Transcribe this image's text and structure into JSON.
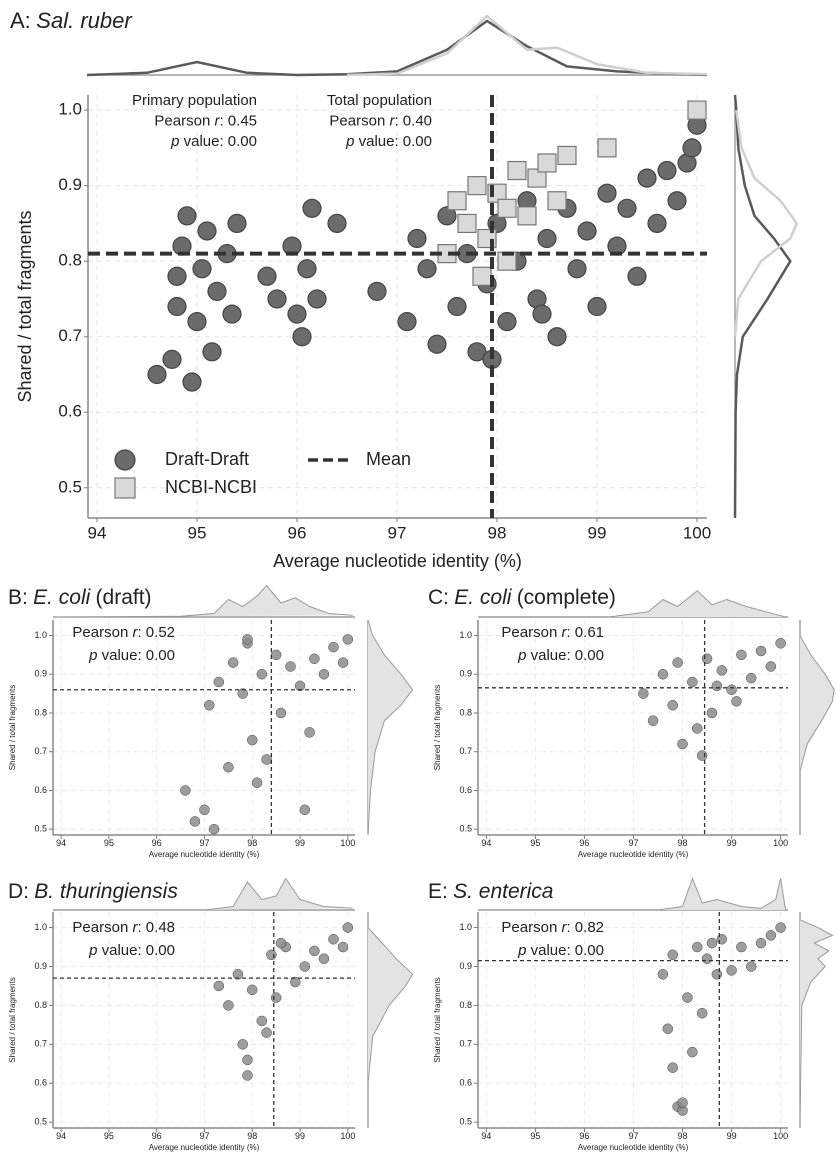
{
  "chart_data": [
    {
      "type": "scatter",
      "panel": "A:",
      "title": "Sal. ruber",
      "xlabel": "Average nucleotide identity (%)",
      "ylabel": "Shared / total fragments",
      "xlim": [
        93.91,
        100.1
      ],
      "ylim": [
        0.46,
        1.02
      ],
      "xticks": [
        94,
        95,
        96,
        97,
        98,
        99,
        100
      ],
      "yticks": [
        0.5,
        0.6,
        0.7,
        0.8,
        0.9,
        {
          "value": 1.0,
          "label": "1.0"
        }
      ],
      "grid": true,
      "mean_x": 97.95,
      "mean_y": 0.81,
      "mean_label": "Mean",
      "annotations": [
        {
          "lines": [
            [
              {
                "text": "Primary population"
              }
            ],
            [
              {
                "text": "Pearson "
              },
              {
                "text": "r",
                "italic": true
              },
              {
                "text": ": 0.45"
              }
            ],
            [
              {
                "text": "p",
                "italic": true
              },
              {
                "text": " value: 0.00"
              }
            ]
          ]
        },
        {
          "lines": [
            [
              {
                "text": "Total population"
              }
            ],
            [
              {
                "text": "Pearson "
              },
              {
                "text": "r",
                "italic": true
              },
              {
                "text": ": 0.40"
              }
            ],
            [
              {
                "text": "p",
                "italic": true
              },
              {
                "text": " value: 0.00"
              }
            ]
          ]
        }
      ],
      "series": [
        {
          "name": "Draft-Draft",
          "color": "#6b6b6b",
          "marker": "circle",
          "x": [
            94.6,
            94.75,
            94.8,
            94.85,
            94.9,
            95.0,
            95.05,
            95.1,
            95.15,
            95.2,
            95.3,
            95.35,
            94.95,
            95.4,
            94.8,
            95.7,
            95.8,
            95.95,
            96.0,
            96.05,
            96.15,
            96.2,
            96.4,
            96.1,
            96.8,
            97.1,
            97.2,
            97.3,
            97.4,
            97.5,
            97.6,
            97.7,
            97.8,
            97.9,
            98.0,
            98.1,
            98.2,
            98.3,
            98.4,
            98.5,
            98.6,
            98.7,
            98.8,
            98.9,
            99.0,
            99.1,
            99.2,
            99.3,
            99.4,
            99.5,
            99.6,
            99.7,
            99.8,
            99.9,
            100.0,
            99.95,
            98.45,
            97.95
          ],
          "values": [
            0.65,
            0.67,
            0.74,
            0.82,
            0.86,
            0.72,
            0.79,
            0.84,
            0.68,
            0.76,
            0.81,
            0.73,
            0.64,
            0.85,
            0.78,
            0.78,
            0.75,
            0.82,
            0.73,
            0.7,
            0.87,
            0.75,
            0.85,
            0.79,
            0.76,
            0.72,
            0.83,
            0.79,
            0.69,
            0.86,
            0.74,
            0.81,
            0.68,
            0.77,
            0.85,
            0.72,
            0.8,
            0.88,
            0.75,
            0.83,
            0.7,
            0.87,
            0.79,
            0.84,
            0.74,
            0.89,
            0.82,
            0.87,
            0.78,
            0.91,
            0.85,
            0.92,
            0.88,
            0.93,
            0.98,
            0.95,
            0.73,
            0.67
          ]
        },
        {
          "name": "NCBI-NCBI",
          "color": "#d9d9d9",
          "marker": "square",
          "x": [
            97.5,
            97.6,
            97.7,
            97.8,
            97.9,
            98.0,
            98.1,
            98.2,
            98.3,
            98.4,
            98.5,
            98.6,
            98.7,
            98.1,
            97.85,
            99.1,
            100.0
          ],
          "values": [
            0.81,
            0.88,
            0.85,
            0.9,
            0.83,
            0.89,
            0.87,
            0.92,
            0.86,
            0.91,
            0.93,
            0.88,
            0.94,
            0.8,
            0.78,
            0.95,
            1.0
          ]
        }
      ],
      "top_density": [
        {
          "color": "#5a5a5a",
          "x": [
            93.9,
            94.5,
            95.0,
            95.5,
            96.0,
            96.5,
            97.0,
            97.5,
            97.9,
            98.3,
            98.7,
            99.2,
            99.7,
            100.1
          ],
          "values": [
            0,
            0.03,
            0.18,
            0.03,
            0,
            0.01,
            0.05,
            0.35,
            0.75,
            0.4,
            0.12,
            0.05,
            0.02,
            0
          ]
        },
        {
          "color": "#cfcfcf",
          "x": [
            96.5,
            97.0,
            97.5,
            97.9,
            98.3,
            98.6,
            99.0,
            99.5,
            100.1
          ],
          "values": [
            0,
            0.02,
            0.3,
            0.82,
            0.35,
            0.38,
            0.15,
            0.03,
            0.01
          ]
        }
      ],
      "right_density": [
        {
          "color": "#5a5a5a",
          "y": [
            0.46,
            0.6,
            0.65,
            0.7,
            0.75,
            0.8,
            0.83,
            0.86,
            0.9,
            0.95,
            1.0,
            1.02
          ],
          "values": [
            0,
            0.01,
            0.03,
            0.12,
            0.5,
            0.85,
            0.6,
            0.3,
            0.15,
            0.05,
            0.02,
            0
          ]
        },
        {
          "color": "#cfcfcf",
          "y": [
            0.7,
            0.75,
            0.8,
            0.83,
            0.85,
            0.88,
            0.91,
            0.95,
            1.0
          ],
          "values": [
            0,
            0.05,
            0.4,
            0.85,
            0.95,
            0.7,
            0.3,
            0.1,
            0.02
          ]
        }
      ]
    },
    {
      "type": "scatter",
      "panel": "B:",
      "title": "E. coli",
      "title_suffix": "(draft)",
      "xlabel": "Average nucleotide identity (%)",
      "ylabel": "Shared / total fragments",
      "xlim": [
        93.83,
        100.15
      ],
      "ylim": [
        0.485,
        1.04
      ],
      "xticks": [
        94,
        95,
        96,
        97,
        98,
        99,
        100
      ],
      "yticks": [
        0.5,
        0.6,
        0.7,
        0.8,
        0.9,
        {
          "value": 1.0,
          "label": "1.0"
        }
      ],
      "grid": true,
      "mean_x": 98.4,
      "mean_y": 0.86,
      "annotations": [
        {
          "lines": [
            [
              {
                "text": "Pearson "
              },
              {
                "text": "r",
                "italic": true
              },
              {
                "text": ": 0.52"
              }
            ],
            [
              {
                "text": "p",
                "italic": true
              },
              {
                "text": " value: 0.00"
              }
            ]
          ]
        }
      ],
      "series": [
        {
          "color": "#8c8c8c",
          "marker": "circle",
          "x": [
            96.6,
            96.8,
            97.0,
            97.1,
            97.3,
            97.5,
            97.6,
            97.8,
            97.9,
            98.0,
            98.2,
            98.3,
            98.5,
            98.6,
            98.8,
            99.0,
            99.1,
            99.3,
            99.5,
            99.7,
            99.9,
            100.0,
            97.9,
            98.1,
            99.2,
            97.2
          ],
          "values": [
            0.6,
            0.52,
            0.55,
            0.82,
            0.88,
            0.66,
            0.93,
            0.85,
            0.98,
            0.73,
            0.9,
            0.68,
            0.95,
            0.8,
            0.92,
            0.87,
            0.55,
            0.94,
            0.9,
            0.97,
            0.93,
            0.99,
            0.99,
            0.62,
            0.75,
            0.5
          ]
        }
      ],
      "top_density": [
        {
          "color": "#999999",
          "fill": "#e3e3e3",
          "x": [
            93.9,
            96.5,
            97.2,
            97.5,
            97.8,
            98.1,
            98.3,
            98.6,
            98.9,
            99.2,
            99.6,
            100.1
          ],
          "values": [
            0,
            0.02,
            0.1,
            0.5,
            0.3,
            0.6,
            0.9,
            0.4,
            0.55,
            0.3,
            0.1,
            0.05
          ]
        }
      ],
      "right_density": [
        {
          "color": "#999999",
          "fill": "#e3e3e3",
          "y": [
            0.485,
            0.6,
            0.7,
            0.78,
            0.82,
            0.86,
            0.9,
            0.95,
            1.0,
            1.04
          ],
          "values": [
            0,
            0.05,
            0.15,
            0.35,
            0.7,
            0.95,
            0.7,
            0.35,
            0.1,
            0
          ]
        }
      ]
    },
    {
      "type": "scatter",
      "panel": "C:",
      "title": "E. coli",
      "title_suffix": "(complete)",
      "xlabel": "Average nucleotide identity (%)",
      "ylabel": "Shared / total fragments",
      "xlim": [
        93.83,
        100.15
      ],
      "ylim": [
        0.485,
        1.04
      ],
      "xticks": [
        94,
        95,
        96,
        97,
        98,
        99,
        100
      ],
      "yticks": [
        0.5,
        0.6,
        0.7,
        0.8,
        0.9,
        {
          "value": 1.0,
          "label": "1.0"
        }
      ],
      "grid": true,
      "mean_x": 98.45,
      "mean_y": 0.865,
      "annotations": [
        {
          "lines": [
            [
              {
                "text": "Pearson "
              },
              {
                "text": "r",
                "italic": true
              },
              {
                "text": ": 0.61"
              }
            ],
            [
              {
                "text": "p",
                "italic": true
              },
              {
                "text": " value: 0.00"
              }
            ]
          ]
        }
      ],
      "series": [
        {
          "color": "#8c8c8c",
          "marker": "circle",
          "x": [
            97.2,
            97.4,
            97.6,
            97.8,
            98.0,
            98.2,
            98.4,
            98.5,
            98.6,
            98.8,
            99.0,
            99.2,
            99.4,
            99.6,
            99.8,
            100.0,
            98.3,
            97.9,
            99.1,
            98.7
          ],
          "values": [
            0.85,
            0.78,
            0.9,
            0.82,
            0.72,
            0.88,
            0.69,
            0.94,
            0.8,
            0.91,
            0.86,
            0.95,
            0.89,
            0.96,
            0.92,
            0.98,
            0.76,
            0.93,
            0.83,
            0.87
          ]
        }
      ],
      "top_density": [
        {
          "color": "#999999",
          "fill": "#e3e3e3",
          "x": [
            96.5,
            97.3,
            97.6,
            97.9,
            98.3,
            98.6,
            98.9,
            99.3,
            99.7,
            100.1
          ],
          "values": [
            0,
            0.15,
            0.5,
            0.3,
            0.75,
            0.35,
            0.5,
            0.3,
            0.15,
            0
          ]
        }
      ],
      "right_density": [
        {
          "color": "#999999",
          "fill": "#e3e3e3",
          "y": [
            0.65,
            0.72,
            0.78,
            0.83,
            0.86,
            0.9,
            0.95,
            1.0
          ],
          "values": [
            0,
            0.2,
            0.6,
            0.9,
            0.95,
            0.7,
            0.3,
            0
          ]
        }
      ]
    },
    {
      "type": "scatter",
      "panel": "D:",
      "title": "B. thuringiensis",
      "xlabel": "Average nucleotide identity (%)",
      "ylabel": "Shared / total fragments",
      "xlim": [
        93.83,
        100.15
      ],
      "ylim": [
        0.485,
        1.04
      ],
      "xticks": [
        94,
        95,
        96,
        97,
        98,
        99,
        100
      ],
      "yticks": [
        0.5,
        0.6,
        0.7,
        0.8,
        0.9,
        {
          "value": 1.0,
          "label": "1.0"
        }
      ],
      "grid": true,
      "mean_x": 98.45,
      "mean_y": 0.87,
      "annotations": [
        {
          "lines": [
            [
              {
                "text": "Pearson "
              },
              {
                "text": "r",
                "italic": true
              },
              {
                "text": ": 0.48"
              }
            ],
            [
              {
                "text": "p",
                "italic": true
              },
              {
                "text": " value: 0.00"
              }
            ]
          ]
        }
      ],
      "series": [
        {
          "color": "#8c8c8c",
          "marker": "circle",
          "x": [
            97.3,
            97.5,
            97.7,
            97.8,
            97.9,
            98.0,
            98.2,
            98.4,
            98.5,
            98.7,
            98.9,
            99.1,
            99.3,
            99.5,
            99.7,
            99.9,
            100.0,
            97.9,
            98.3,
            98.6
          ],
          "values": [
            0.85,
            0.8,
            0.88,
            0.7,
            0.62,
            0.84,
            0.76,
            0.93,
            0.82,
            0.95,
            0.86,
            0.9,
            0.94,
            0.92,
            0.97,
            0.95,
            1.0,
            0.66,
            0.73,
            0.96
          ]
        }
      ],
      "top_density": [
        {
          "color": "#999999",
          "fill": "#e3e3e3",
          "x": [
            97.0,
            97.6,
            97.9,
            98.2,
            98.5,
            98.7,
            99.0,
            99.5,
            100.1
          ],
          "values": [
            0,
            0.1,
            0.8,
            0.3,
            0.4,
            0.9,
            0.3,
            0.1,
            0.05
          ]
        }
      ],
      "right_density": [
        {
          "color": "#999999",
          "fill": "#e3e3e3",
          "y": [
            0.6,
            0.72,
            0.8,
            0.85,
            0.88,
            0.92,
            0.96,
            1.0
          ],
          "values": [
            0,
            0.1,
            0.45,
            0.8,
            0.95,
            0.6,
            0.3,
            0
          ]
        }
      ]
    },
    {
      "type": "scatter",
      "panel": "E:",
      "title": "S. enterica",
      "xlabel": "Average nucleotide identity (%)",
      "ylabel": "Shared / total fragments",
      "xlim": [
        93.83,
        100.15
      ],
      "ylim": [
        0.485,
        1.04
      ],
      "xticks": [
        94,
        95,
        96,
        97,
        98,
        99,
        100
      ],
      "yticks": [
        0.5,
        0.6,
        0.7,
        0.8,
        0.9,
        {
          "value": 1.0,
          "label": "1.0"
        }
      ],
      "grid": true,
      "mean_x": 98.75,
      "mean_y": 0.915,
      "annotations": [
        {
          "lines": [
            [
              {
                "text": "Pearson "
              },
              {
                "text": "r",
                "italic": true
              },
              {
                "text": ": 0.82"
              }
            ],
            [
              {
                "text": "p",
                "italic": true
              },
              {
                "text": " value: 0.00"
              }
            ]
          ]
        }
      ],
      "series": [
        {
          "color": "#8c8c8c",
          "marker": "circle",
          "x": [
            97.6,
            97.7,
            97.8,
            97.9,
            98.0,
            98.1,
            98.2,
            98.3,
            98.4,
            98.5,
            98.6,
            98.7,
            98.8,
            99.2,
            99.4,
            99.6,
            99.8,
            100.0,
            98.0,
            97.8,
            99.0
          ],
          "values": [
            0.88,
            0.74,
            0.64,
            0.54,
            0.53,
            0.82,
            0.68,
            0.95,
            0.78,
            0.92,
            0.96,
            0.88,
            0.97,
            0.95,
            0.9,
            0.96,
            0.98,
            1.0,
            0.55,
            0.93,
            0.89
          ]
        }
      ],
      "top_density": [
        {
          "color": "#999999",
          "fill": "#e3e3e3",
          "x": [
            97.5,
            98.0,
            98.2,
            98.4,
            98.7,
            99.2,
            99.6,
            99.9,
            100.0,
            100.1
          ],
          "values": [
            0,
            0.1,
            0.9,
            0.2,
            0.3,
            0.1,
            0.05,
            0.3,
            0.9,
            0
          ]
        }
      ],
      "right_density": [
        {
          "color": "#999999",
          "fill": "#e3e3e3",
          "y": [
            0.5,
            0.8,
            0.86,
            0.9,
            0.92,
            0.94,
            0.96,
            0.98,
            1.0,
            1.02
          ],
          "values": [
            0,
            0.05,
            0.3,
            0.7,
            0.5,
            0.8,
            0.4,
            0.9,
            0.5,
            0
          ]
        }
      ]
    }
  ]
}
